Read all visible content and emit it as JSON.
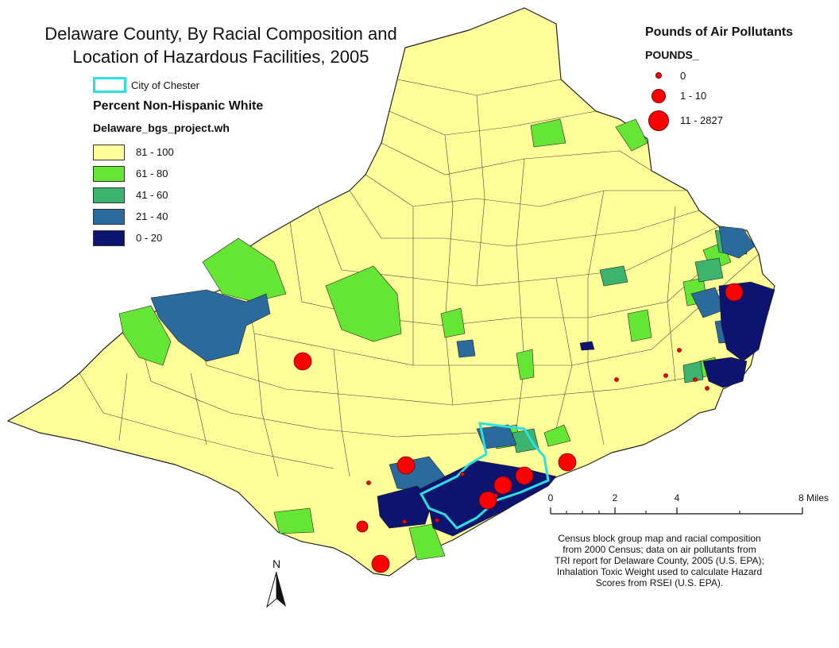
{
  "title": {
    "line1": "Delaware County, By Racial Composition and",
    "line2": "Location of Hazardous Facilities, 2005"
  },
  "boundary_legend": {
    "label": "City of Chester",
    "color": "#2de0e0"
  },
  "white_legend": {
    "heading": "Percent Non-Hispanic White",
    "field": "Delaware_bgs_project.wh",
    "classes": [
      {
        "label": "81 - 100",
        "color": "#ffff99"
      },
      {
        "label": "61 - 80",
        "color": "#66e634"
      },
      {
        "label": "41 - 60",
        "color": "#3cb46e"
      },
      {
        "label": "21 - 40",
        "color": "#2a6a9c"
      },
      {
        "label": "0 - 20",
        "color": "#0c1470"
      }
    ]
  },
  "pollutant_legend": {
    "heading": "Pounds of Air Pollutants",
    "field": "POUNDS_",
    "classes": [
      {
        "label": "0",
        "size": "small"
      },
      {
        "label": "1 - 10",
        "size": "medium"
      },
      {
        "label": "11 - 2827",
        "size": "large"
      }
    ],
    "color": "#ff0000"
  },
  "north_arrow": {
    "label": "N"
  },
  "scale_bar": {
    "ticks": [
      "0",
      "2",
      "4",
      "8 Miles"
    ],
    "values_miles": [
      0,
      2,
      4,
      8
    ]
  },
  "credits": [
    "Census block group map and racial composition",
    "from 2000 Census; data on air pollutants from",
    "TRI report for Delaware County, 2005 (U.S. EPA);",
    "Inhalation Toxic Weight used to calculate Hazard",
    "Scores from RSEI (U.S. EPA)."
  ]
}
